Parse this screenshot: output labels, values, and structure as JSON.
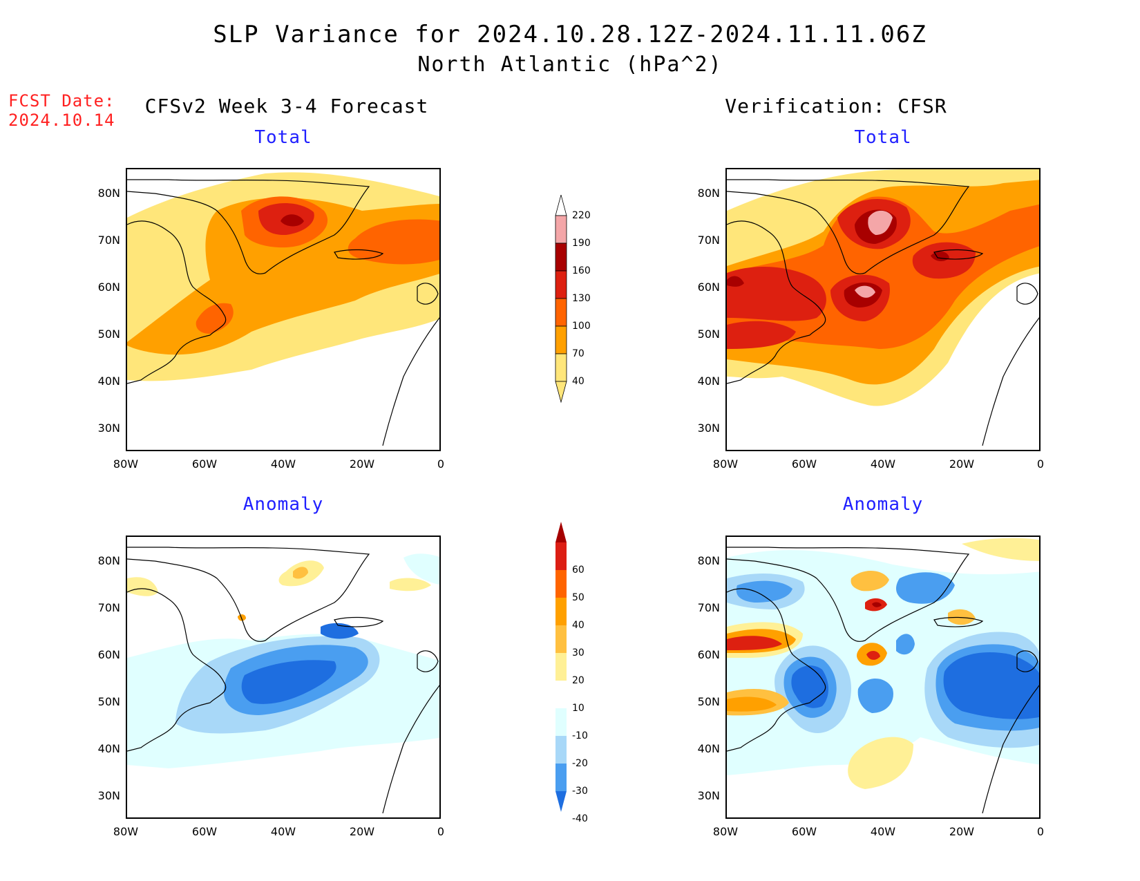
{
  "header": {
    "title_line1": "SLP Variance for 2024.10.28.12Z-2024.11.11.06Z",
    "title_line2": "North Atlantic (hPa^2)",
    "fcst_label": "FCST Date:",
    "fcst_date": "2024.10.14"
  },
  "columns": {
    "left_title": "CFSv2 Week 3-4 Forecast",
    "right_title": "Verification: CFSR"
  },
  "panels": {
    "forecast_total": {
      "subtitle": "Total"
    },
    "verification_total": {
      "subtitle": "Total"
    },
    "forecast_anomaly": {
      "subtitle": "Anomaly"
    },
    "verification_anomaly": {
      "subtitle": "Anomaly"
    }
  },
  "axes": {
    "lat_labels": [
      "80N",
      "70N",
      "60N",
      "50N",
      "40N",
      "30N"
    ],
    "lon_labels": [
      "80W",
      "60W",
      "40W",
      "20W",
      "0"
    ]
  },
  "colorbars": {
    "total": {
      "labels": [
        "220",
        "190",
        "160",
        "130",
        "100",
        "70",
        "40"
      ],
      "colors": [
        "#ffffff",
        "#f4a6a8",
        "#a80000",
        "#dd2010",
        "#ff6400",
        "#ffa000",
        "#ffe67a"
      ]
    },
    "anomaly": {
      "labels": [
        "60",
        "50",
        "40",
        "30",
        "20",
        "10",
        "-10",
        "-20",
        "-30",
        "-40"
      ],
      "colors": [
        "#a50000",
        "#dc1e14",
        "#ff6400",
        "#ffa000",
        "#ffc040",
        "#fff096",
        "#ffffff",
        "#e0ffff",
        "#a8d8f8",
        "#4a9ef0",
        "#1e6ee0"
      ]
    }
  }
}
